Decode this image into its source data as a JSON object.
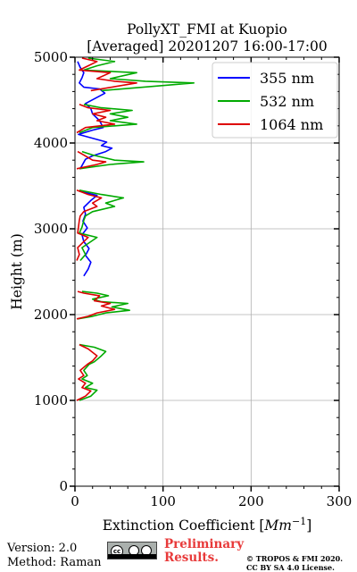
{
  "chart_data": {
    "type": "line",
    "title": "PollyXT_FMI at Kuopio",
    "subtitle": "[Averaged] 20201207 16:00-17:00",
    "xlabel": "Extinction Coefficient [Mm⁻¹]",
    "xlabel_main": "Extinction Coefficient [",
    "xlabel_unit": "Mm",
    "xlabel_exp": "−1",
    "xlabel_close": "]",
    "ylabel": "Height (m)",
    "xlim": [
      0,
      300
    ],
    "ylim": [
      0,
      5000
    ],
    "xticks": [
      0,
      100,
      200,
      300
    ],
    "xtick_labels": [
      "0",
      "100",
      "200",
      "300"
    ],
    "yticks": [
      0,
      1000,
      2000,
      3000,
      4000,
      5000
    ],
    "ytick_labels": [
      "0",
      "1000",
      "2000",
      "3000",
      "4000",
      "5000"
    ],
    "grid": true,
    "legend_position": "top-right",
    "series": [
      {
        "name": "355 nm",
        "color": "#0000ff",
        "points": [
          [
            10,
            2450
          ],
          [
            15,
            2530
          ],
          [
            18,
            2610
          ],
          [
            12,
            2690
          ],
          [
            16,
            2770
          ],
          [
            10,
            2850
          ],
          [
            8,
            2930
          ],
          [
            14,
            3010
          ],
          [
            9,
            3090
          ],
          [
            12,
            3170
          ],
          [
            10,
            3250
          ],
          [
            18,
            3330
          ],
          [
            25,
            3390
          ],
          [
            5,
            3440
          ],
          [
            6,
            3700
          ],
          [
            12,
            3810
          ],
          [
            20,
            3850
          ],
          [
            35,
            3900
          ],
          [
            42,
            3940
          ],
          [
            30,
            3970
          ],
          [
            36,
            4010
          ],
          [
            4,
            4100
          ],
          [
            20,
            4150
          ],
          [
            32,
            4180
          ],
          [
            28,
            4260
          ],
          [
            20,
            4340
          ],
          [
            18,
            4400
          ],
          [
            12,
            4460
          ],
          [
            34,
            4580
          ],
          [
            28,
            4630
          ],
          [
            10,
            4650
          ],
          [
            5,
            4700
          ],
          [
            8,
            4760
          ],
          [
            10,
            4820
          ],
          [
            6,
            4880
          ],
          [
            3,
            4950
          ]
        ]
      },
      {
        "name": "532 nm",
        "color": "#00aa00",
        "points": [
          [
            5,
            1000
          ],
          [
            18,
            1050
          ],
          [
            25,
            1120
          ],
          [
            12,
            1150
          ],
          [
            20,
            1200
          ],
          [
            8,
            1250
          ],
          [
            14,
            1290
          ],
          [
            10,
            1350
          ],
          [
            16,
            1420
          ],
          [
            22,
            1450
          ],
          [
            30,
            1520
          ],
          [
            35,
            1570
          ],
          [
            22,
            1620
          ],
          [
            5,
            1650
          ],
          [
            3,
            1950
          ],
          [
            20,
            1980
          ],
          [
            35,
            2020
          ],
          [
            62,
            2050
          ],
          [
            42,
            2090
          ],
          [
            60,
            2130
          ],
          [
            30,
            2150
          ],
          [
            20,
            2180
          ],
          [
            38,
            2220
          ],
          [
            25,
            2250
          ],
          [
            8,
            2270
          ],
          [
            6,
            2630
          ],
          [
            12,
            2700
          ],
          [
            8,
            2780
          ],
          [
            25,
            2900
          ],
          [
            5,
            2950
          ],
          [
            8,
            3020
          ],
          [
            10,
            3100
          ],
          [
            12,
            3150
          ],
          [
            20,
            3200
          ],
          [
            45,
            3260
          ],
          [
            35,
            3300
          ],
          [
            55,
            3360
          ],
          [
            30,
            3400
          ],
          [
            5,
            3450
          ],
          [
            5,
            3700
          ],
          [
            40,
            3750
          ],
          [
            78,
            3780
          ],
          [
            45,
            3800
          ],
          [
            20,
            3860
          ],
          [
            8,
            3900
          ],
          [
            5,
            4120
          ],
          [
            20,
            4180
          ],
          [
            70,
            4220
          ],
          [
            40,
            4260
          ],
          [
            60,
            4300
          ],
          [
            40,
            4340
          ],
          [
            65,
            4380
          ],
          [
            30,
            4410
          ],
          [
            10,
            4450
          ],
          [
            30,
            4610
          ],
          [
            135,
            4700
          ],
          [
            80,
            4720
          ],
          [
            40,
            4750
          ],
          [
            70,
            4820
          ],
          [
            10,
            4850
          ],
          [
            25,
            4900
          ],
          [
            45,
            4950
          ],
          [
            15,
            4990
          ]
        ]
      },
      {
        "name": "1064 nm",
        "color": "#dd0000",
        "points": [
          [
            2,
            1000
          ],
          [
            12,
            1050
          ],
          [
            18,
            1110
          ],
          [
            8,
            1150
          ],
          [
            12,
            1200
          ],
          [
            4,
            1250
          ],
          [
            10,
            1290
          ],
          [
            6,
            1350
          ],
          [
            14,
            1420
          ],
          [
            20,
            1460
          ],
          [
            25,
            1520
          ],
          [
            15,
            1600
          ],
          [
            5,
            1650
          ],
          [
            2,
            1950
          ],
          [
            15,
            1980
          ],
          [
            25,
            2020
          ],
          [
            45,
            2060
          ],
          [
            30,
            2100
          ],
          [
            40,
            2130
          ],
          [
            22,
            2160
          ],
          [
            28,
            2220
          ],
          [
            10,
            2250
          ],
          [
            3,
            2270
          ],
          [
            2,
            2630
          ],
          [
            5,
            2700
          ],
          [
            3,
            2780
          ],
          [
            15,
            2900
          ],
          [
            3,
            2950
          ],
          [
            4,
            3020
          ],
          [
            5,
            3100
          ],
          [
            6,
            3150
          ],
          [
            10,
            3200
          ],
          [
            25,
            3260
          ],
          [
            20,
            3300
          ],
          [
            30,
            3360
          ],
          [
            15,
            3400
          ],
          [
            2,
            3450
          ],
          [
            2,
            3700
          ],
          [
            25,
            3750
          ],
          [
            35,
            3780
          ],
          [
            20,
            3800
          ],
          [
            10,
            3860
          ],
          [
            3,
            3900
          ],
          [
            2,
            4120
          ],
          [
            12,
            4180
          ],
          [
            45,
            4220
          ],
          [
            25,
            4260
          ],
          [
            35,
            4300
          ],
          [
            20,
            4340
          ],
          [
            40,
            4380
          ],
          [
            15,
            4410
          ],
          [
            5,
            4450
          ],
          [
            18,
            4610
          ],
          [
            70,
            4700
          ],
          [
            45,
            4720
          ],
          [
            25,
            4750
          ],
          [
            40,
            4820
          ],
          [
            5,
            4850
          ],
          [
            15,
            4900
          ],
          [
            25,
            4950
          ],
          [
            8,
            4990
          ]
        ]
      }
    ]
  },
  "footer": {
    "version": "Version: 2.0",
    "method": "Method: Raman",
    "license_badge": "cc",
    "preliminary_line1": "Preliminary",
    "preliminary_line2": "Results.",
    "copyright_line1": "© TROPOS & FMI 2020.",
    "copyright_line2": "CC BY SA 4.0 License."
  }
}
